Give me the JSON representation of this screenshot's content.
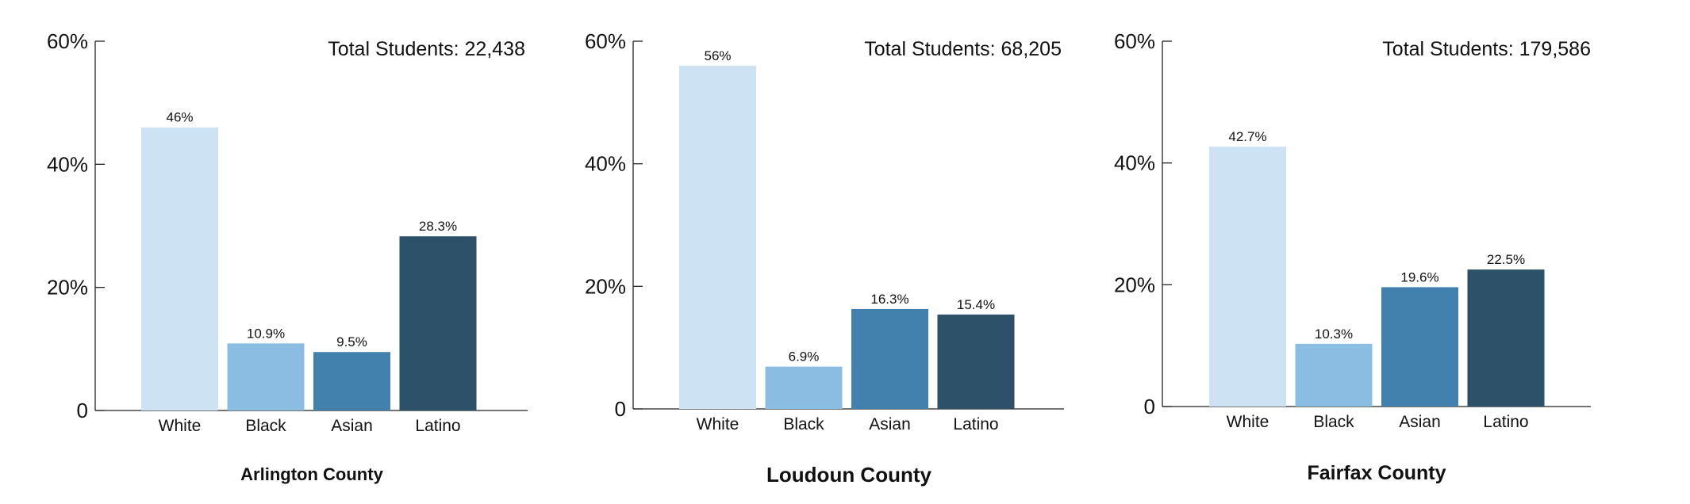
{
  "chart_data": [
    {
      "type": "bar",
      "title": "Arlington County",
      "annotation": "Total Students: 22,438",
      "categories": [
        "White",
        "Black",
        "Asian",
        "Latino"
      ],
      "values": [
        46,
        10.9,
        9.5,
        28.3
      ],
      "value_labels": [
        "46%",
        "10.9%",
        "9.5%",
        "28.3%"
      ],
      "ylim": [
        0,
        60
      ],
      "yticks": [
        0,
        20,
        40,
        60
      ],
      "ytick_labels": [
        "0",
        "20%",
        "40%",
        "60%"
      ],
      "grid": false,
      "colors": [
        "#cde3f3",
        "#8bbde3",
        "#4280ad",
        "#2c5169"
      ]
    },
    {
      "type": "bar",
      "title": "Loudoun County",
      "annotation": "Total Students: 68,205",
      "categories": [
        "White",
        "Black",
        "Asian",
        "Latino"
      ],
      "values": [
        56,
        6.9,
        16.3,
        15.4
      ],
      "value_labels": [
        "56%",
        "6.9%",
        "16.3%",
        "15.4%"
      ],
      "ylim": [
        0,
        60
      ],
      "yticks": [
        0,
        20,
        40,
        60
      ],
      "ytick_labels": [
        "0",
        "20%",
        "40%",
        "60%"
      ],
      "grid": false,
      "colors": [
        "#cde3f3",
        "#8bbde3",
        "#4280ad",
        "#2c5169"
      ]
    },
    {
      "type": "bar",
      "title": "Fairfax County",
      "annotation": "Total Students: 179,586",
      "categories": [
        "White",
        "Black",
        "Asian",
        "Latino"
      ],
      "values": [
        42.7,
        10.3,
        19.6,
        22.5
      ],
      "value_labels": [
        "42.7%",
        "10.3%",
        "19.6%",
        "22.5%"
      ],
      "ylim": [
        0,
        60
      ],
      "yticks": [
        0,
        20,
        40,
        60
      ],
      "ytick_labels": [
        "0",
        "20%",
        "40%",
        "60%"
      ],
      "grid": false,
      "colors": [
        "#cde3f3",
        "#8bbde3",
        "#4280ad",
        "#2c5169"
      ]
    }
  ]
}
